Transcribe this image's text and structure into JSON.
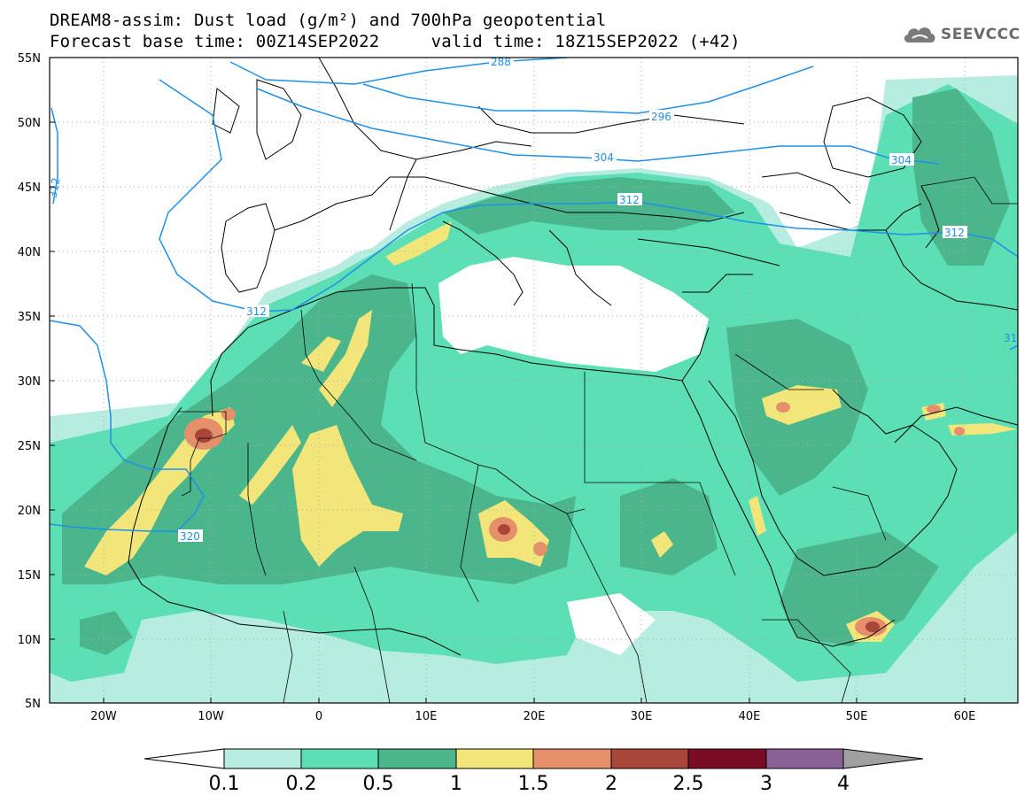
{
  "header": {
    "title_line1": "DREAM8-assim: Dust load (g/m²) and 700hPa geopotential",
    "title_line2": "Forecast base time: 00Z14SEP2022     valid time: 18Z15SEP2022 (+42)"
  },
  "logo": {
    "text": "SEEVCCC",
    "icon": "cloud-icon"
  },
  "map": {
    "lat_labels": [
      "55N",
      "50N",
      "45N",
      "40N",
      "35N",
      "30N",
      "25N",
      "20N",
      "15N",
      "10N",
      "5N"
    ],
    "lon_labels": [
      "20W",
      "10W",
      "0",
      "10E",
      "20E",
      "30E",
      "40E",
      "50E",
      "60E"
    ],
    "contours": [
      {
        "label": "288"
      },
      {
        "label": "296"
      },
      {
        "label": "304"
      },
      {
        "label": "304"
      },
      {
        "label": "312"
      },
      {
        "label": "312"
      },
      {
        "label": "312"
      },
      {
        "label": "312"
      },
      {
        "label": "320"
      },
      {
        "label": "31"
      }
    ]
  },
  "colorbar": {
    "levels": [
      "0.1",
      "0.2",
      "0.5",
      "1",
      "1.5",
      "2",
      "2.5",
      "3",
      "4"
    ],
    "colors": [
      "#b7ece0",
      "#5ddfb5",
      "#4bb58c",
      "#f2e67a",
      "#e5906b",
      "#a8463a",
      "#7a0b24",
      "#8a6196"
    ],
    "under_color": "#ffffff",
    "over_color": "#a0a0a0"
  },
  "colors": {
    "contour": "#1e90e8",
    "c1": "#b7ece0",
    "c2": "#5ddfb5",
    "c3": "#4bb58c",
    "c4": "#f2e67a",
    "c5": "#e5906b",
    "c6": "#a8463a"
  }
}
